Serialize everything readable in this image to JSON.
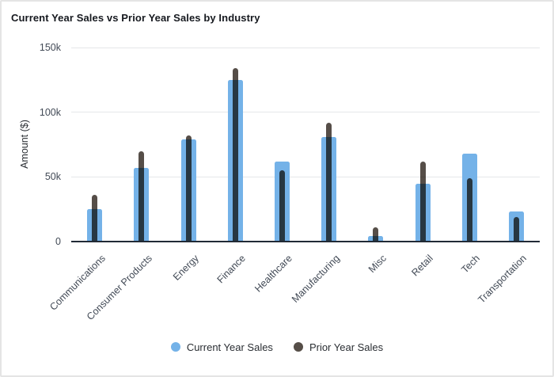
{
  "chart_data": {
    "type": "bar",
    "title": "Current Year Sales vs Prior Year Sales by Industry",
    "categories": [
      "Communications",
      "Consumer Products",
      "Energy",
      "Finance",
      "Healthcare",
      "Manufacturing",
      "Misc",
      "Retail",
      "Tech",
      "Transportation"
    ],
    "series": [
      {
        "name": "Current Year Sales",
        "color": "#74b2e8",
        "values": [
          25000,
          57000,
          79000,
          125000,
          62000,
          81000,
          4000,
          45000,
          68000,
          23000
        ]
      },
      {
        "name": "Prior Year Sales",
        "color": "#564e48",
        "values": [
          36000,
          70000,
          82000,
          134000,
          55000,
          92000,
          11000,
          62000,
          49000,
          19000
        ]
      }
    ],
    "xlabel": "",
    "ylabel": "Amount ($)",
    "ylim": [
      0,
      150000
    ],
    "yticks": [
      {
        "label": "0",
        "value": 0
      },
      {
        "label": "50k",
        "value": 50000
      },
      {
        "label": "100k",
        "value": 100000
      },
      {
        "label": "150k",
        "value": 150000
      }
    ],
    "grid": true,
    "legend_position": "bottom"
  },
  "colors": {
    "current_series": "#74b2e8",
    "prior_series": "#564e48",
    "gridline": "#e5e7e9",
    "axis_line": "#212a36",
    "tick_text": "#424a56",
    "title_text": "#16191f",
    "card_border": "#e4e4e4"
  }
}
